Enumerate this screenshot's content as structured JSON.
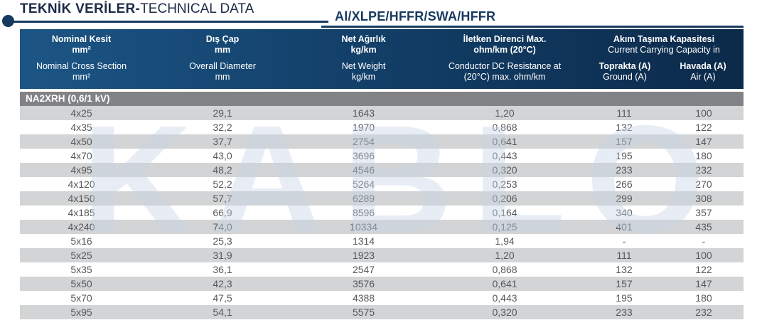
{
  "header": {
    "title_bold": "TEKNİK VERİLER-",
    "title_regular": "TECHNICAL DATA",
    "cable_code": "Al/XLPE/HFFR/SWA/HFFR"
  },
  "table": {
    "section_title": "NA2XRH (0,6/1 kV)",
    "columns": [
      {
        "tr": "Nominal Kesit",
        "tr_unit": "mm²",
        "en": "Nominal Cross Section",
        "en_unit": "mm²"
      },
      {
        "tr": "Dış Çap",
        "tr_unit": "mm",
        "en": "Overall Diameter",
        "en_unit": "mm"
      },
      {
        "tr": "Net Ağırlık",
        "tr_unit": "kg/km",
        "en": "Net Weight",
        "en_unit": "kg/km"
      },
      {
        "tr": "İletken Direnci Max.",
        "tr_unit": "ohm/km (20°C)",
        "en": "Conductor DC Resistance at",
        "en_unit": "(20°C) max. ohm/km"
      }
    ],
    "capacity_group": {
      "tr": "Akım Taşıma Kapasitesi",
      "en": "Current Carrying Capacity in",
      "sub": [
        {
          "tr": "Toprakta (A)",
          "en": "Ground (A)"
        },
        {
          "tr": "Havada (A)",
          "en": "Air (A)"
        }
      ]
    },
    "rows": [
      [
        "4x25",
        "29,1",
        "1643",
        "1,20",
        "111",
        "100"
      ],
      [
        "4x35",
        "32,2",
        "1970",
        "0,868",
        "132",
        "122"
      ],
      [
        "4x50",
        "37,7",
        "2754",
        "0,641",
        "157",
        "147"
      ],
      [
        "4x70",
        "43,0",
        "3696",
        "0,443",
        "195",
        "180"
      ],
      [
        "4x95",
        "48,2",
        "4546",
        "0,320",
        "233",
        "232"
      ],
      [
        "4x120",
        "52,2",
        "5264",
        "0,253",
        "266",
        "270"
      ],
      [
        "4x150",
        "57,7",
        "6289",
        "0,206",
        "299",
        "308"
      ],
      [
        "4x185",
        "66,9",
        "8596",
        "0,164",
        "340",
        "357"
      ],
      [
        "4x240",
        "74,0",
        "10334",
        "0,125",
        "401",
        "435"
      ],
      [
        "5x16",
        "25,3",
        "1314",
        "1,94",
        "-",
        "-"
      ],
      [
        "5x25",
        "31,9",
        "1923",
        "1,20",
        "111",
        "100"
      ],
      [
        "5x35",
        "36,1",
        "2547",
        "0,868",
        "132",
        "122"
      ],
      [
        "5x50",
        "42,3",
        "3576",
        "0,641",
        "157",
        "147"
      ],
      [
        "5x70",
        "47,5",
        "4388",
        "0,443",
        "195",
        "180"
      ],
      [
        "5x95",
        "54,1",
        "5575",
        "0,320",
        "233",
        "232"
      ]
    ]
  },
  "watermark": "KABLO",
  "colors": {
    "header_navy_left": "#1c5585",
    "header_navy_right": "#0c2a4a",
    "accent_navy": "#16395f",
    "section_gray": "#818386",
    "stripe_gray": "#d2d4d5",
    "cell_text": "#56595c"
  }
}
